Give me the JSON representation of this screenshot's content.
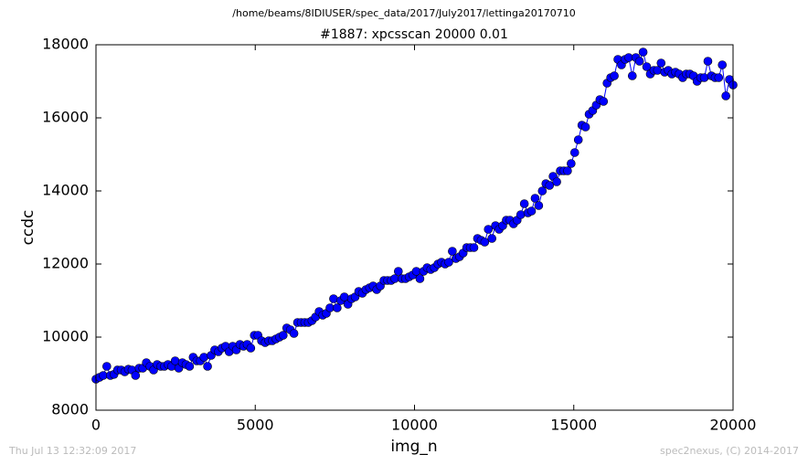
{
  "chart_data": {
    "type": "line",
    "suptitle": "/home/beams/8IDIUSER/spec_data/2017/July2017/lettinga20170710",
    "title": "#1887: xpcsscan 20000 0.01",
    "x_label": "img_n",
    "y_label": "ccdc",
    "footer_left": "Thu Jul 13 12:32:09 2017",
    "footer_right": "spec2nexus, (C) 2014-2017",
    "color": "#0000ff",
    "markers": true,
    "xlim": [
      0,
      20000
    ],
    "xticks": [
      0,
      5000,
      10000,
      15000,
      20000
    ],
    "ylim": [
      8000,
      18000
    ],
    "yticks": [
      8000,
      10000,
      12000,
      14000,
      16000,
      18000
    ],
    "x": [
      0,
      113,
      226,
      339,
      452,
      565,
      678,
      791,
      904,
      1017,
      1130,
      1243,
      1356,
      1469,
      1582,
      1695,
      1808,
      1921,
      2034,
      2147,
      2260,
      2373,
      2486,
      2599,
      2712,
      2825,
      2938,
      3051,
      3164,
      3277,
      3390,
      3503,
      3616,
      3729,
      3842,
      3955,
      4068,
      4181,
      4294,
      4407,
      4520,
      4633,
      4746,
      4859,
      4972,
      5085,
      5198,
      5311,
      5424,
      5537,
      5650,
      5763,
      5876,
      5989,
      6102,
      6215,
      6328,
      6441,
      6554,
      6667,
      6780,
      6893,
      7006,
      7119,
      7232,
      7345,
      7458,
      7571,
      7684,
      7797,
      7910,
      8023,
      8136,
      8249,
      8362,
      8475,
      8588,
      8701,
      8814,
      8927,
      9040,
      9153,
      9266,
      9379,
      9492,
      9605,
      9718,
      9831,
      9944,
      10057,
      10170,
      10283,
      10396,
      10509,
      10622,
      10735,
      10848,
      10961,
      11074,
      11187,
      11300,
      11413,
      11526,
      11639,
      11752,
      11865,
      11978,
      12091,
      12204,
      12317,
      12430,
      12543,
      12656,
      12769,
      12882,
      12995,
      13108,
      13221,
      13334,
      13447,
      13560,
      13673,
      13786,
      13899,
      14012,
      14125,
      14238,
      14351,
      14464,
      14577,
      14690,
      14803,
      14916,
      15029,
      15142,
      15255,
      15368,
      15481,
      15594,
      15707,
      15820,
      15933,
      16046,
      16159,
      16272,
      16385,
      16498,
      16611,
      16724,
      16837,
      16950,
      17063,
      17176,
      17289,
      17402,
      17515,
      17628,
      17741,
      17854,
      17967,
      18080,
      18193,
      18306,
      18419,
      18532,
      18645,
      18758,
      18871,
      18984,
      19097,
      19210,
      19323,
      19436,
      19549,
      19662,
      19775,
      19888,
      20000
    ],
    "values": [
      8850,
      8900,
      8950,
      9200,
      8950,
      8980,
      9100,
      9100,
      9050,
      9120,
      9100,
      8950,
      9150,
      9150,
      9300,
      9200,
      9100,
      9250,
      9200,
      9200,
      9250,
      9200,
      9350,
      9150,
      9300,
      9250,
      9200,
      9450,
      9350,
      9350,
      9450,
      9200,
      9500,
      9650,
      9600,
      9700,
      9750,
      9600,
      9750,
      9650,
      9800,
      9750,
      9800,
      9700,
      10050,
      10050,
      9900,
      9850,
      9900,
      9900,
      9950,
      10000,
      10050,
      10250,
      10200,
      10100,
      10400,
      10400,
      10400,
      10400,
      10450,
      10550,
      10700,
      10600,
      10650,
      10800,
      11050,
      10800,
      11000,
      11100,
      10900,
      11050,
      11100,
      11250,
      11200,
      11300,
      11350,
      11400,
      11300,
      11400,
      11550,
      11550,
      11550,
      11600,
      11800,
      11600,
      11600,
      11650,
      11700,
      11800,
      11600,
      11800,
      11900,
      11850,
      11900,
      12000,
      12050,
      12000,
      12050,
      12350,
      12150,
      12200,
      12300,
      12450,
      12450,
      12450,
      12700,
      12650,
      12600,
      12950,
      12700,
      13050,
      12950,
      13050,
      13200,
      13200,
      13100,
      13200,
      13350,
      13650,
      13400,
      13450,
      13800,
      13600,
      14000,
      14200,
      14150,
      14400,
      14250,
      14550,
      14550,
      14550,
      14750,
      15050,
      15400,
      15800,
      15750,
      16100,
      16200,
      16350,
      16500,
      16450,
      16950,
      17100,
      17150,
      17600,
      17450,
      17600,
      17650,
      17150,
      17650,
      17550,
      17800,
      17400,
      17200,
      17300,
      17300,
      17500,
      17250,
      17300,
      17200,
      17250,
      17200,
      17100,
      17200,
      17200,
      17150,
      17000,
      17100,
      17100,
      17550,
      17150,
      17100,
      17100,
      17450,
      16600,
      17050,
      16900
    ]
  }
}
